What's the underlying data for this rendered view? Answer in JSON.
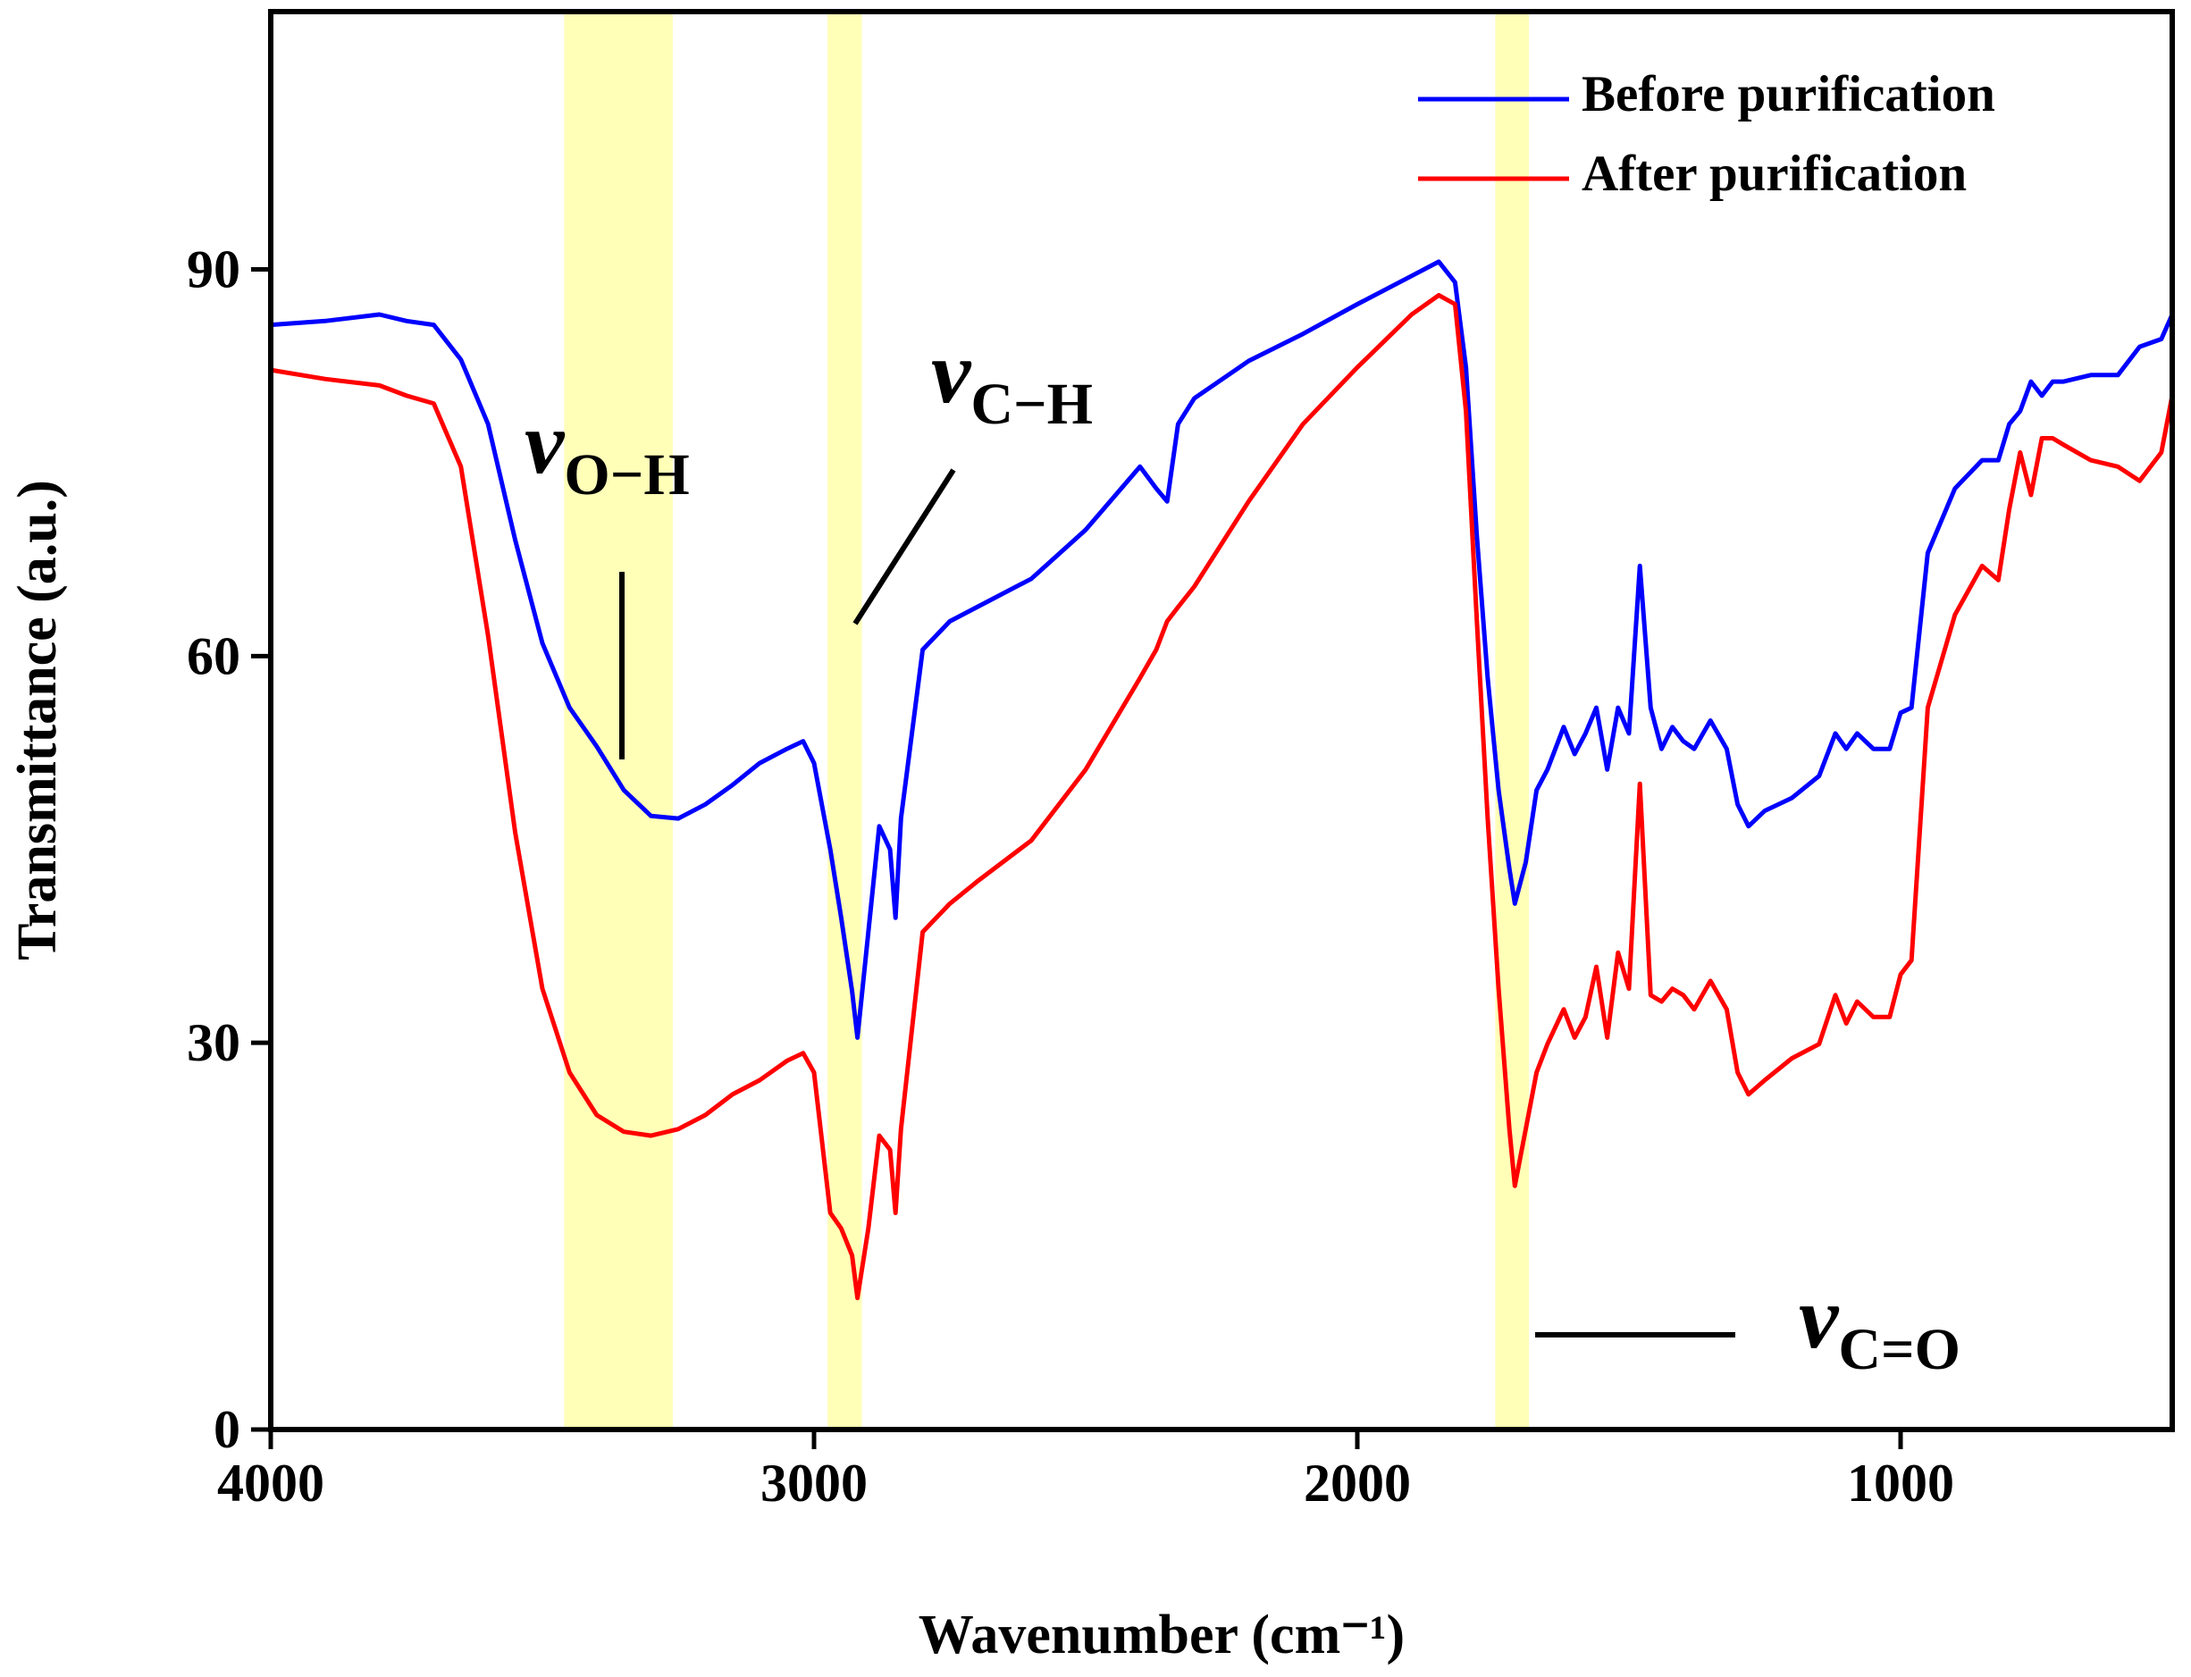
{
  "chart_data": {
    "type": "line",
    "xlabel": "Wavenumber (cm⁻¹)",
    "ylabel": "Transmittance (a.u.)",
    "xlim": [
      4000,
      500
    ],
    "ylim": [
      0,
      110
    ],
    "xticks": [
      4000,
      3000,
      2000,
      1000
    ],
    "yticks": [
      0,
      30,
      60,
      90
    ],
    "legend": "top-right",
    "highlights": [
      {
        "from": 3460,
        "to": 3260,
        "color": "#ffffb8"
      },
      {
        "from": 2975,
        "to": 2912,
        "color": "#ffffb8"
      },
      {
        "from": 1746,
        "to": 1684,
        "color": "#ffffb8"
      }
    ],
    "annotations": [
      {
        "symbol": "v",
        "subscript": "O−H"
      },
      {
        "symbol": "v",
        "subscript": "C−H"
      },
      {
        "symbol": "v",
        "subscript": "C=O"
      }
    ],
    "x": [
      4000,
      3900,
      3800,
      3750,
      3700,
      3650,
      3600,
      3550,
      3500,
      3450,
      3400,
      3350,
      3300,
      3250,
      3200,
      3150,
      3100,
      3050,
      3020,
      3000,
      2970,
      2950,
      2930,
      2920,
      2900,
      2880,
      2860,
      2850,
      2840,
      2800,
      2750,
      2700,
      2600,
      2500,
      2400,
      2370,
      2350,
      2330,
      2300,
      2200,
      2100,
      2000,
      1900,
      1850,
      1820,
      1800,
      1780,
      1760,
      1740,
      1720,
      1710,
      1690,
      1670,
      1650,
      1620,
      1600,
      1580,
      1560,
      1540,
      1520,
      1500,
      1480,
      1460,
      1440,
      1420,
      1400,
      1380,
      1350,
      1320,
      1300,
      1280,
      1250,
      1200,
      1150,
      1120,
      1100,
      1080,
      1050,
      1020,
      1000,
      980,
      950,
      900,
      850,
      820,
      800,
      780,
      760,
      740,
      720,
      700,
      650,
      600,
      560,
      520,
      500
    ],
    "series": [
      {
        "name": "Before purification",
        "color": "#0000ff",
        "values": [
          85.7,
          86,
          86.5,
          86,
          85.7,
          83,
          78,
          69,
          61,
          56,
          53,
          49.6,
          47.6,
          47.4,
          48.5,
          50,
          51.7,
          52.8,
          53.4,
          51.7,
          45,
          39.7,
          34,
          30.4,
          38.6,
          46.8,
          45,
          39.7,
          47.4,
          60.5,
          62.7,
          63.8,
          66,
          69.8,
          74.7,
          73,
          72,
          78,
          80,
          82.9,
          85,
          87.3,
          89.5,
          90.6,
          89,
          82.4,
          69.3,
          58.3,
          49.6,
          43.5,
          40.8,
          44,
          49.6,
          51.2,
          54.5,
          52.4,
          54,
          56,
          51.2,
          56,
          54,
          67,
          56,
          52.8,
          54.5,
          53.4,
          52.8,
          55,
          52.8,
          48.5,
          46.8,
          48,
          49,
          50.7,
          54,
          52.8,
          54,
          52.8,
          52.8,
          55.6,
          56,
          68,
          73,
          75.2,
          75.2,
          78,
          79,
          81.3,
          80.2,
          81.3,
          81.3,
          81.8,
          81.8,
          84,
          84.6,
          86.5
        ]
      },
      {
        "name": "After purification",
        "color": "#ff0000",
        "values": [
          82.2,
          81.5,
          81,
          80.2,
          79.6,
          74.7,
          61.6,
          46.3,
          34.2,
          27.7,
          24.4,
          23.1,
          22.8,
          23.3,
          24.4,
          26,
          27.1,
          28.6,
          29.2,
          27.7,
          16.8,
          15.6,
          13.5,
          10.2,
          15.6,
          22.8,
          21.7,
          16.8,
          23.3,
          38.6,
          40.8,
          42.5,
          45.7,
          51.2,
          58.3,
          60.5,
          62.7,
          63.8,
          65.4,
          72,
          78,
          82.4,
          86.5,
          88,
          87.3,
          79,
          62.7,
          47.4,
          34.2,
          23.3,
          18.9,
          23.3,
          27.7,
          29.9,
          32.6,
          30.4,
          32,
          35.9,
          30.4,
          37,
          34.2,
          50.1,
          33.7,
          33.2,
          34.2,
          33.7,
          32.6,
          34.8,
          32.6,
          27.7,
          26,
          27.1,
          28.8,
          29.9,
          33.7,
          31.5,
          33.2,
          32,
          32,
          35.3,
          36.4,
          56,
          63.2,
          67,
          65.9,
          71.4,
          75.8,
          72.5,
          76.9,
          76.9,
          76.4,
          75.2,
          74.7,
          73.6,
          75.8,
          80.2
        ]
      }
    ]
  }
}
